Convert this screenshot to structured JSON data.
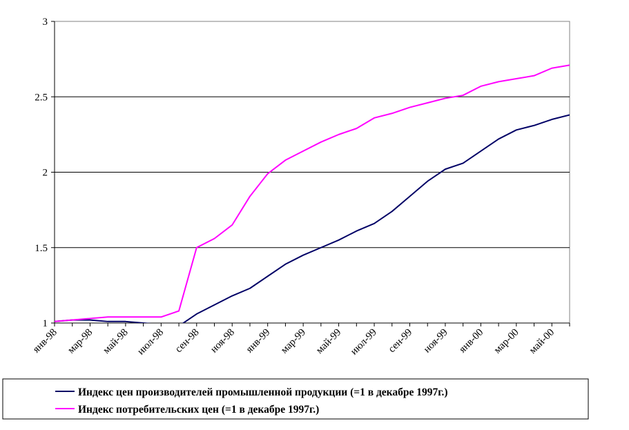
{
  "chart_data": {
    "type": "line",
    "x": [
      "янв-98",
      "фев-98",
      "мар-98",
      "апр-98",
      "май-98",
      "июн-98",
      "июл-98",
      "авг-98",
      "сен-98",
      "окт-98",
      "ноя-98",
      "дек-98",
      "янв-99",
      "фев-99",
      "мар-99",
      "апр-99",
      "май-99",
      "июн-99",
      "июл-99",
      "авг-99",
      "сен-99",
      "окт-99",
      "ноя-99",
      "дек-99",
      "янв-00",
      "фев-00",
      "мар-00",
      "апр-00",
      "май-00",
      "июн-00"
    ],
    "x_tick_labels": [
      "янв-98",
      "мар-98",
      "май-98",
      "июл-98",
      "сен-98",
      "ноя-98",
      "янв-99",
      "мар-99",
      "май-99",
      "июл-99",
      "сен-99",
      "ноя-99",
      "янв-00",
      "мар-00",
      "май-00"
    ],
    "ylim": [
      1,
      3
    ],
    "y_ticks": [
      "1",
      "1.5",
      "2",
      "2.5",
      "3"
    ],
    "grid": "horizontal",
    "legend_position": "bottom",
    "series": [
      {
        "name": "Индекс цен производителей промышленной продукции (=1 в декабре 1997г.)",
        "color": "#000066",
        "values": [
          1.01,
          1.02,
          1.02,
          1.01,
          1.01,
          1.0,
          0.99,
          0.98,
          1.06,
          1.12,
          1.18,
          1.23,
          1.31,
          1.39,
          1.45,
          1.5,
          1.55,
          1.61,
          1.66,
          1.74,
          1.84,
          1.94,
          2.02,
          2.06,
          2.14,
          2.22,
          2.28,
          2.31,
          2.35,
          2.38
        ]
      },
      {
        "name": "Индекс потребительских цен (=1 в декабре 1997г.)",
        "color": "#ff00ff",
        "values": [
          1.01,
          1.02,
          1.03,
          1.04,
          1.04,
          1.04,
          1.04,
          1.08,
          1.5,
          1.56,
          1.65,
          1.84,
          1.99,
          2.08,
          2.14,
          2.2,
          2.25,
          2.29,
          2.36,
          2.39,
          2.43,
          2.46,
          2.49,
          2.51,
          2.57,
          2.6,
          2.62,
          2.64,
          2.69,
          2.71
        ]
      }
    ]
  }
}
